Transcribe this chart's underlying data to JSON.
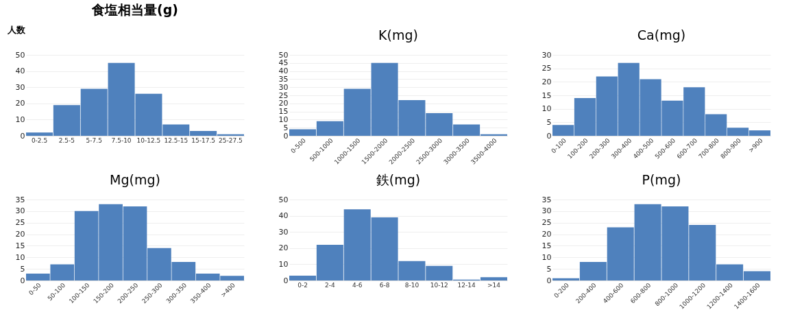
{
  "chart_data": [
    {
      "type": "bar",
      "title": "食塩相当量(g)",
      "ylabel": "人数",
      "categories": [
        "0-2.5",
        "2.5-5",
        "5-7.5",
        "7.5-10",
        "10-12.5",
        "12.5-15",
        "15-17.5",
        "25-27.5"
      ],
      "values": [
        2,
        19,
        29,
        45,
        26,
        7,
        3,
        1
      ],
      "color": "#4f81bd",
      "ylim": [
        0,
        50
      ],
      "yticks": [
        0,
        10,
        20,
        30,
        40,
        50
      ],
      "grid": "y"
    },
    {
      "type": "bar",
      "title": "K(mg)",
      "categories": [
        "0-500",
        "500-1000",
        "1000-1500",
        "1500-2000",
        "2000-2500",
        "2500-3000",
        "3000-3500",
        "3500-4000"
      ],
      "values": [
        4,
        9,
        29,
        45,
        22,
        14,
        7,
        1
      ],
      "color": "#4f81bd",
      "ylim": [
        0,
        50
      ],
      "yticks": [
        0,
        5,
        10,
        15,
        20,
        25,
        30,
        35,
        40,
        45,
        50
      ],
      "grid": "y"
    },
    {
      "type": "bar",
      "title": "Ca(mg)",
      "categories": [
        "0-100",
        "100-200",
        "200-300",
        "300-400",
        "400-500",
        "500-600",
        "600-700",
        "700-800",
        "800-900",
        ">900"
      ],
      "values": [
        4,
        14,
        22,
        27,
        21,
        13,
        18,
        8,
        3,
        2
      ],
      "color": "#4f81bd",
      "ylim": [
        0,
        30
      ],
      "yticks": [
        0,
        5,
        10,
        15,
        20,
        25,
        30
      ],
      "grid": "y"
    },
    {
      "type": "bar",
      "title": "Mg(mg)",
      "categories": [
        "0-50",
        "50-100",
        "100-150",
        "150-200",
        "200-250",
        "250-300",
        "300-350",
        "350-400",
        ">400"
      ],
      "values": [
        3,
        7,
        30,
        33,
        32,
        14,
        8,
        3,
        2
      ],
      "color": "#4f81bd",
      "ylim": [
        0,
        35
      ],
      "yticks": [
        0,
        5,
        10,
        15,
        20,
        25,
        30,
        35
      ],
      "grid": "y"
    },
    {
      "type": "bar",
      "title": "鉄(mg)",
      "categories": [
        "0-2",
        "2-4",
        "4-6",
        "6-8",
        "8-10",
        "10-12",
        "12-14",
        ">14"
      ],
      "values": [
        3,
        22,
        44,
        39,
        12,
        9,
        0.5,
        2
      ],
      "color": "#4f81bd",
      "ylim": [
        0,
        50
      ],
      "yticks": [
        0,
        10,
        20,
        30,
        40,
        50
      ],
      "grid": "y"
    },
    {
      "type": "bar",
      "title": "P(mg)",
      "categories": [
        "0-200",
        "200-400",
        "400-600",
        "600-800",
        "800-1000",
        "1000-1200",
        "1200-1400",
        "1400-1600"
      ],
      "values": [
        1,
        8,
        23,
        33,
        32,
        24,
        7,
        4
      ],
      "color": "#4f81bd",
      "ylim": [
        0,
        35
      ],
      "yticks": [
        0,
        5,
        10,
        15,
        20,
        25,
        30,
        35
      ],
      "grid": "y"
    }
  ]
}
